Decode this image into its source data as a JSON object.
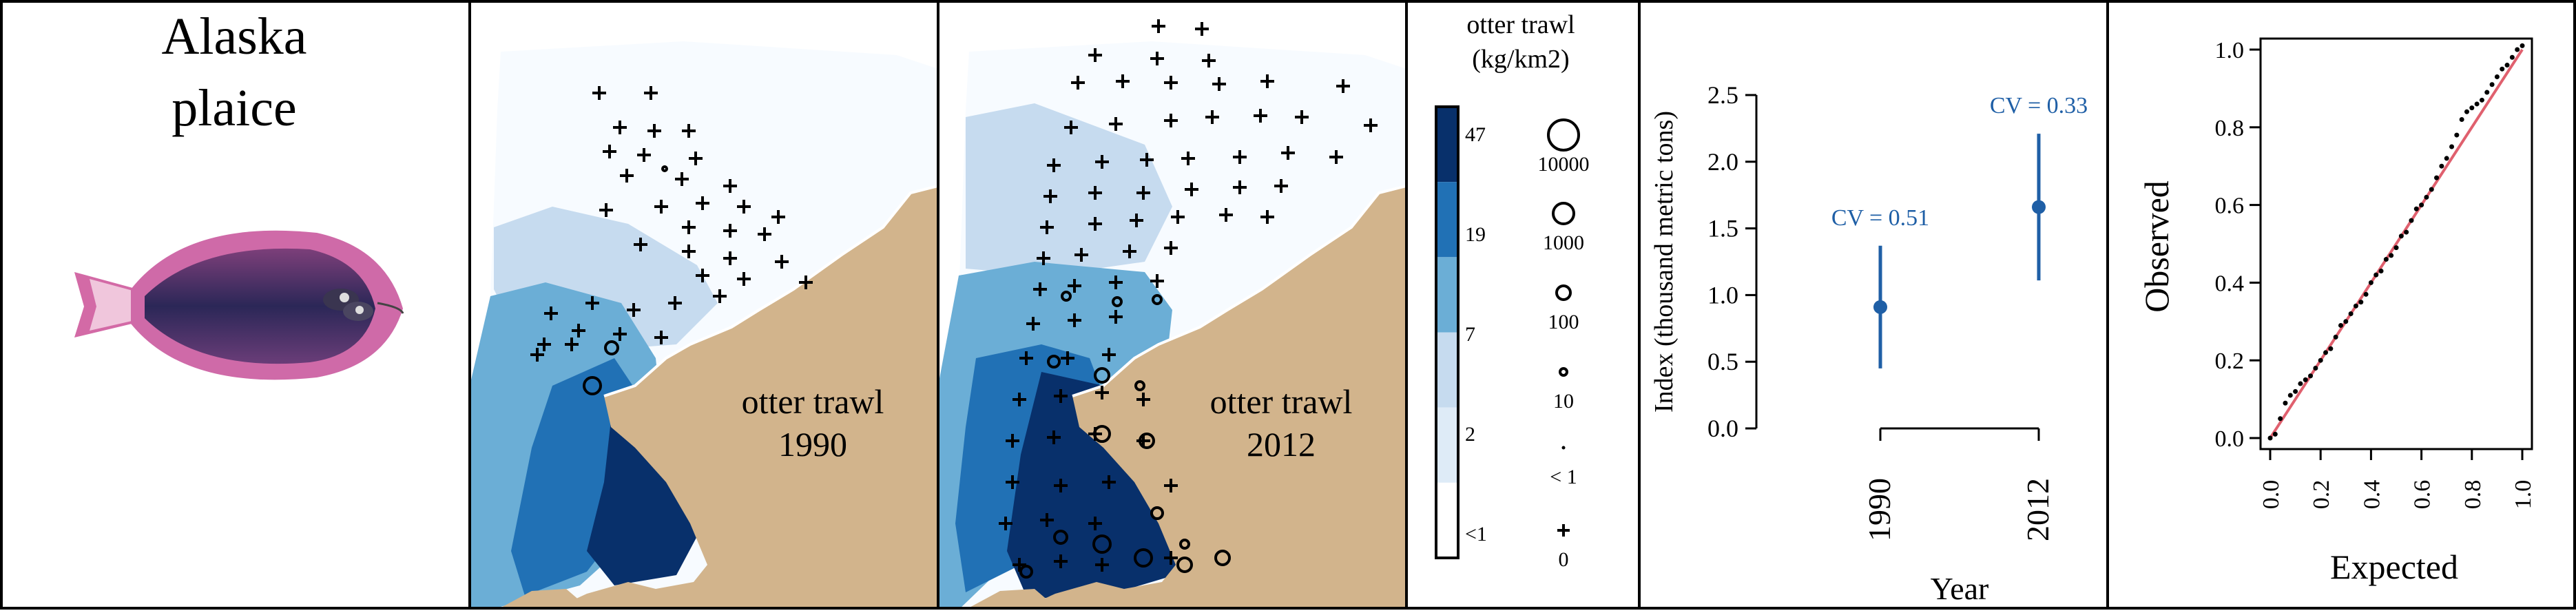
{
  "species": {
    "line1": "Alaska",
    "line2": "plaice"
  },
  "maps": [
    {
      "gear": "otter trawl",
      "year": "1990"
    },
    {
      "gear": "otter trawl",
      "year": "2012"
    }
  ],
  "legend": {
    "title_line1": "otter trawl",
    "title_line2": "(kg/km2)",
    "color_ticks": [
      "47",
      "19",
      "7",
      "2",
      "<1"
    ],
    "bin_colors": [
      "#08306b",
      "#2171b5",
      "#6baed6",
      "#c6dbef",
      "#deebf7",
      "#f7fbff"
    ],
    "size_labels": [
      "10000",
      "1000",
      "100",
      "10",
      "< 1",
      "0"
    ]
  },
  "colors": {
    "land": "#d2b48c",
    "index_series": "#1f5fa6",
    "qq_line": "#e0606e"
  },
  "chart_data": [
    {
      "type": "scatter",
      "title": "",
      "xlabel": "Year",
      "ylabel": "Index (thousand metric tons)",
      "categories": [
        "1990",
        "2012"
      ],
      "values": [
        0.91,
        1.66
      ],
      "lower": [
        0.45,
        1.11
      ],
      "upper": [
        1.37,
        2.21
      ],
      "annotations": [
        "CV = 0.51",
        "CV = 0.33"
      ],
      "yticks": [
        "0.0",
        "0.5",
        "1.0",
        "1.5",
        "2.0",
        "2.5"
      ],
      "ylim": [
        0,
        2.5
      ]
    },
    {
      "type": "scatter",
      "title": "",
      "xlabel": "Expected",
      "ylabel": "Observed",
      "xticks": [
        "0.0",
        "0.2",
        "0.4",
        "0.6",
        "0.8",
        "1.0"
      ],
      "yticks": [
        "0.0",
        "0.2",
        "0.4",
        "0.6",
        "0.8",
        "1.0"
      ],
      "xlim": [
        0,
        1
      ],
      "ylim": [
        0,
        1
      ],
      "reference_line": [
        [
          0,
          0
        ],
        [
          1,
          1
        ]
      ],
      "points": [
        [
          0.0,
          0.0
        ],
        [
          0.02,
          0.01
        ],
        [
          0.04,
          0.05
        ],
        [
          0.06,
          0.09
        ],
        [
          0.08,
          0.11
        ],
        [
          0.1,
          0.12
        ],
        [
          0.12,
          0.14
        ],
        [
          0.14,
          0.15
        ],
        [
          0.16,
          0.16
        ],
        [
          0.18,
          0.18
        ],
        [
          0.2,
          0.2
        ],
        [
          0.22,
          0.22
        ],
        [
          0.24,
          0.23
        ],
        [
          0.26,
          0.26
        ],
        [
          0.28,
          0.29
        ],
        [
          0.3,
          0.3
        ],
        [
          0.32,
          0.32
        ],
        [
          0.34,
          0.34
        ],
        [
          0.36,
          0.35
        ],
        [
          0.38,
          0.37
        ],
        [
          0.4,
          0.4
        ],
        [
          0.42,
          0.42
        ],
        [
          0.44,
          0.43
        ],
        [
          0.46,
          0.46
        ],
        [
          0.48,
          0.47
        ],
        [
          0.5,
          0.49
        ],
        [
          0.52,
          0.52
        ],
        [
          0.54,
          0.53
        ],
        [
          0.56,
          0.56
        ],
        [
          0.58,
          0.59
        ],
        [
          0.6,
          0.6
        ],
        [
          0.62,
          0.62
        ],
        [
          0.64,
          0.64
        ],
        [
          0.66,
          0.67
        ],
        [
          0.68,
          0.7
        ],
        [
          0.7,
          0.72
        ],
        [
          0.72,
          0.75
        ],
        [
          0.74,
          0.78
        ],
        [
          0.76,
          0.82
        ],
        [
          0.78,
          0.84
        ],
        [
          0.8,
          0.85
        ],
        [
          0.82,
          0.86
        ],
        [
          0.84,
          0.87
        ],
        [
          0.86,
          0.89
        ],
        [
          0.88,
          0.91
        ],
        [
          0.9,
          0.93
        ],
        [
          0.92,
          0.95
        ],
        [
          0.94,
          0.96
        ],
        [
          0.96,
          0.98
        ],
        [
          0.98,
          1.0
        ],
        [
          1.0,
          1.01
        ]
      ]
    }
  ]
}
